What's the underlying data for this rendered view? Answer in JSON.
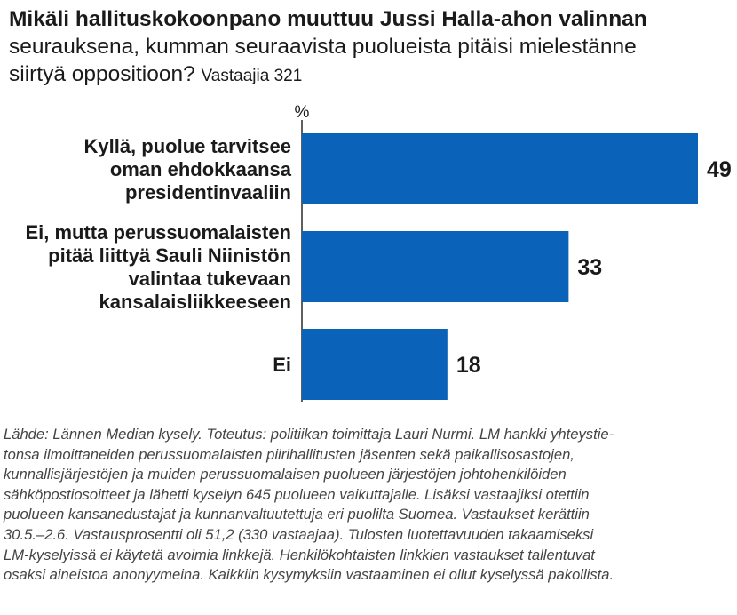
{
  "header": {
    "title": "Mikäli hallituskokoonpano muuttuu Jussi Halla-ahon valinnan",
    "subtitle_line1": "seurauksena, kumman seuraavista puolueista pitäisi mielestänne",
    "subtitle_line2": "siirtyä oppositioon?",
    "respondents": "Vastaajia 321"
  },
  "colors": {
    "bar": "#0a63b8",
    "text": "#1a1a1a",
    "axis": "#2a2a2a",
    "footnote": "#444444"
  },
  "chart_data": {
    "type": "bar",
    "orientation": "horizontal",
    "unit_label": "%",
    "categories": [
      [
        "Kyllä, puolue tarvitsee",
        "oman ehdokkaansa",
        "presidentinvaaliin"
      ],
      [
        "Ei, mutta perussuomalaisten",
        "pitää liittyä Sauli Niinistön",
        "valintaa tukevaan",
        "kansalaisliikkeeseen"
      ],
      [
        "Ei"
      ]
    ],
    "values": [
      49,
      33,
      18
    ],
    "value_labels": [
      "49",
      "33",
      "18"
    ],
    "xlim": [
      0,
      49
    ],
    "grid": false
  },
  "footnote": {
    "lines": [
      "Lähde: Lännen Median kysely. Toteutus: politiikan toimittaja Lauri Nurmi. LM hankki yhteystie-",
      "tonsa ilmoittaneiden perussuomalaisten piirihallitusten jäsenten sekä paikallisosastojen,",
      "kunnallisjärjestöjen ja muiden perussuomalaisen puolueen järjestöjen johtohenkilöiden",
      "sähköpostiosoitteet ja lähetti kyselyn 645 puolueen vaikuttajalle. Lisäksi vastaajiksi otettiin",
      "puolueen kansanedustajat ja kunnanvaltuutettuja eri puolilta Suomea. Vastaukset kerättiin",
      "30.5.–2.6. Vastausprosentti oli 51,2 (330 vastaajaa). Tulosten luotettavuuden takaamiseksi",
      "LM-kyselyissä ei käytetä avoimia linkkejä. Henkilökohtaisten linkkien vastaukset tallentuvat",
      "osaksi aineistoa anonyymeina. Kaikkiin kysymyksiin vastaaminen ei ollut kyselyssä pakollista."
    ]
  }
}
